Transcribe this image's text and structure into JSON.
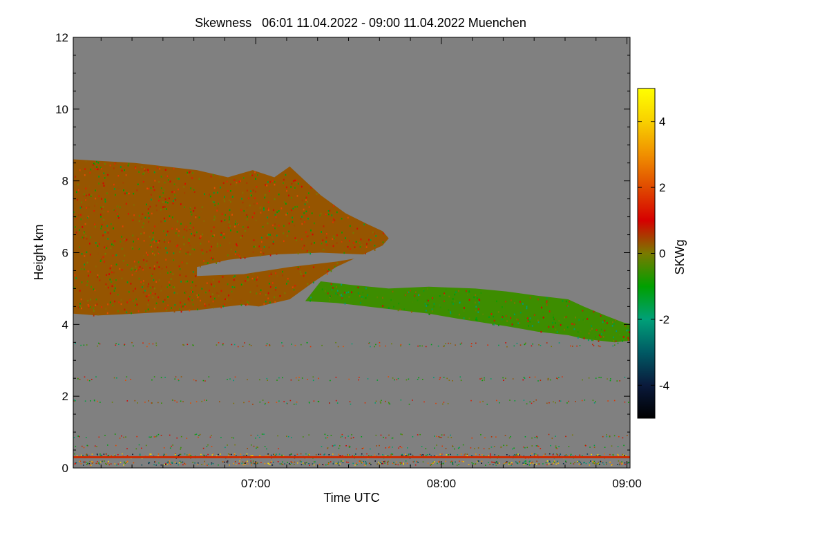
{
  "chart_data": {
    "type": "heatmap",
    "title": "Skewness   06:01 11.04.2022 - 09:00 11.04.2022 Muenchen",
    "xlabel": "Time UTC",
    "ylabel": "Height km",
    "colorbar_label": "SKWg",
    "xlim": [
      "06:01",
      "09:01"
    ],
    "x_ticks": [
      "07:00",
      "08:00",
      "09:00"
    ],
    "ylim": [
      0,
      12
    ],
    "y_ticks": [
      0,
      2,
      4,
      6,
      8,
      10,
      12
    ],
    "colorbar_range": [
      -5,
      5
    ],
    "colorbar_ticks": [
      -4,
      -2,
      0,
      2,
      4
    ],
    "background_color": "#808080",
    "colorscale": [
      {
        "value": -5,
        "color": "#000000"
      },
      {
        "value": -4,
        "color": "#0a1a3c"
      },
      {
        "value": -3,
        "color": "#005a64"
      },
      {
        "value": -2,
        "color": "#00a078"
      },
      {
        "value": -1,
        "color": "#00a000"
      },
      {
        "value": 0,
        "color": "#7a7a00"
      },
      {
        "value": 1,
        "color": "#d60000"
      },
      {
        "value": 2,
        "color": "#e04a00"
      },
      {
        "value": 3,
        "color": "#f09000"
      },
      {
        "value": 4,
        "color": "#f8d000"
      },
      {
        "value": 5,
        "color": "#ffff00"
      }
    ],
    "cloud_layers": [
      {
        "name": "upper",
        "mean_skewness": 0.3,
        "outline": [
          [
            0,
            4.3
          ],
          [
            8,
            4.25
          ],
          [
            20,
            4.3
          ],
          [
            30,
            4.35
          ],
          [
            40,
            4.4
          ],
          [
            50,
            4.5
          ],
          [
            55,
            4.55
          ],
          [
            60,
            4.5
          ],
          [
            70,
            4.7
          ],
          [
            78,
            5.2
          ],
          [
            85,
            5.6
          ],
          [
            90,
            5.8
          ],
          [
            95,
            6.0
          ],
          [
            100,
            6.2
          ],
          [
            102,
            6.4
          ],
          [
            100,
            6.6
          ],
          [
            95,
            6.8
          ],
          [
            88,
            7.1
          ],
          [
            80,
            7.6
          ],
          [
            75,
            8.0
          ],
          [
            70,
            8.4
          ],
          [
            65,
            8.1
          ],
          [
            58,
            8.3
          ],
          [
            50,
            8.1
          ],
          [
            40,
            8.3
          ],
          [
            30,
            8.4
          ],
          [
            20,
            8.5
          ],
          [
            10,
            8.55
          ],
          [
            0,
            8.6
          ]
        ]
      },
      {
        "name": "lower",
        "mean_skewness": -0.5,
        "outline": [
          [
            75,
            4.65
          ],
          [
            85,
            4.6
          ],
          [
            95,
            4.5
          ],
          [
            105,
            4.4
          ],
          [
            115,
            4.3
          ],
          [
            125,
            4.15
          ],
          [
            140,
            3.95
          ],
          [
            150,
            3.8
          ],
          [
            160,
            3.7
          ],
          [
            165,
            3.6
          ],
          [
            175,
            3.5
          ],
          [
            180,
            3.55
          ],
          [
            185,
            3.7
          ],
          [
            184,
            3.95
          ],
          [
            178,
            4.05
          ],
          [
            172,
            4.25
          ],
          [
            165,
            4.5
          ],
          [
            160,
            4.7
          ],
          [
            150,
            4.8
          ],
          [
            140,
            4.92
          ],
          [
            130,
            5.0
          ],
          [
            115,
            5.05
          ],
          [
            102,
            5.0
          ],
          [
            90,
            5.1
          ],
          [
            80,
            5.2
          ]
        ]
      },
      {
        "name": "clear-gap",
        "mean_skewness": null,
        "outline": [
          [
            40,
            5.35
          ],
          [
            55,
            5.4
          ],
          [
            70,
            5.6
          ],
          [
            85,
            5.75
          ],
          [
            92,
            5.85
          ],
          [
            94,
            5.95
          ],
          [
            80,
            6.0
          ],
          [
            65,
            5.95
          ],
          [
            50,
            5.8
          ],
          [
            40,
            5.6
          ]
        ]
      }
    ],
    "near_surface_line": {
      "height_km": 0.3,
      "color": "#cc2a00"
    }
  }
}
